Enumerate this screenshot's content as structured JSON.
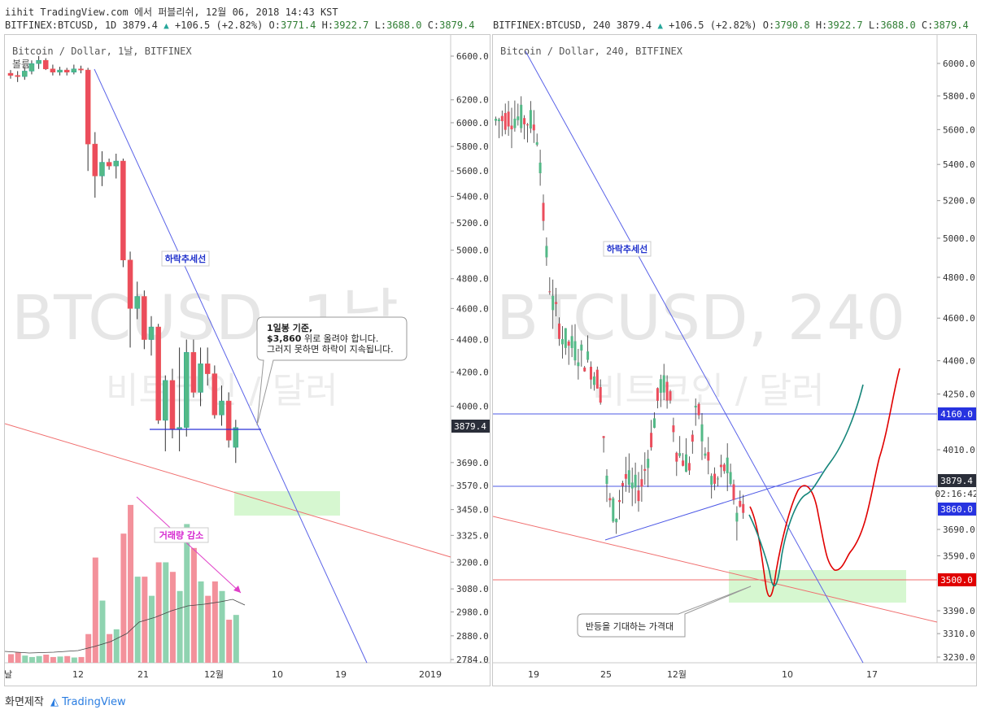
{
  "header": {
    "line1": "iihit TradingView.com 에서 퍼블리쉬, 12월 06, 2018 14:43 KST",
    "left": {
      "prefix": "BITFINEX:BTCUSD, 1D 3879.4",
      "change": "+106.5 (+2.82%)",
      "o": "3771.4",
      "h": "3922.7",
      "l": "3688.0",
      "c": "3879.4"
    },
    "right": {
      "prefix": "BITFINEX:BTCUSD, 240 3879.4",
      "change": "+106.5 (+2.82%)",
      "o": "3790.8",
      "h": "3922.7",
      "l": "3688.0",
      "c": "3879.4"
    }
  },
  "footer": {
    "made_by": "화면제작",
    "brand": "TradingView"
  },
  "colors": {
    "up": "#26a69a",
    "down": "#ef5350",
    "up_fill": "#53b987",
    "down_fill": "#eb4d5c",
    "trend_blue": "#3b4fe4",
    "trend_red": "#f06e6e",
    "zone_green": "#d6f7d0",
    "vol_up": "#8fd3b0",
    "vol_down": "#f3919b",
    "badge": "#2a2e39"
  },
  "chart_data": [
    {
      "type": "candlestick",
      "symbol_label": "Bitcoin / Dollar, 1날, BITFINEX",
      "sublabel": "볼륨",
      "watermark": "BTCUSD, 1날",
      "watermark_sub": "비트코인 / 달러",
      "x_ticks": [
        "날",
        "12",
        "21",
        "12월",
        "10",
        "19",
        "2019"
      ],
      "y_ticks": [
        "6600.0",
        "6200.0",
        "6000.0",
        "5800.0",
        "5600.0",
        "5400.0",
        "5200.0",
        "5000.0",
        "4800.0",
        "4600.0",
        "4400.0",
        "4200.0",
        "4000.0",
        "3690.0",
        "3570.0",
        "3450.0",
        "3325.0",
        "3200.0",
        "3080.0",
        "2980.0",
        "2880.0",
        "2784.0"
      ],
      "ylim": [
        2784,
        6600
      ],
      "scale": "log",
      "last_price": "3879.4",
      "candles": [
        {
          "o": 6440,
          "h": 6470,
          "l": 6390,
          "c": 6420
        },
        {
          "o": 6420,
          "h": 6460,
          "l": 6360,
          "c": 6410
        },
        {
          "o": 6410,
          "h": 6500,
          "l": 6380,
          "c": 6460
        },
        {
          "o": 6460,
          "h": 6560,
          "l": 6430,
          "c": 6530
        },
        {
          "o": 6530,
          "h": 6600,
          "l": 6480,
          "c": 6560
        },
        {
          "o": 6560,
          "h": 6580,
          "l": 6470,
          "c": 6480
        },
        {
          "o": 6480,
          "h": 6520,
          "l": 6420,
          "c": 6450
        },
        {
          "o": 6450,
          "h": 6500,
          "l": 6420,
          "c": 6470
        },
        {
          "o": 6470,
          "h": 6490,
          "l": 6420,
          "c": 6450
        },
        {
          "o": 6450,
          "h": 6520,
          "l": 6430,
          "c": 6480
        },
        {
          "o": 6480,
          "h": 6510,
          "l": 6440,
          "c": 6470
        },
        {
          "o": 6470,
          "h": 6490,
          "l": 5600,
          "c": 5820
        },
        {
          "o": 5820,
          "h": 5920,
          "l": 5390,
          "c": 5560
        },
        {
          "o": 5560,
          "h": 5760,
          "l": 5480,
          "c": 5670
        },
        {
          "o": 5670,
          "h": 5700,
          "l": 5610,
          "c": 5640
        },
        {
          "o": 5640,
          "h": 5740,
          "l": 5540,
          "c": 5680
        },
        {
          "o": 5680,
          "h": 5700,
          "l": 4880,
          "c": 4930
        },
        {
          "o": 4930,
          "h": 4990,
          "l": 4350,
          "c": 4600
        },
        {
          "o": 4600,
          "h": 4780,
          "l": 4530,
          "c": 4680
        },
        {
          "o": 4680,
          "h": 4720,
          "l": 4340,
          "c": 4400
        },
        {
          "o": 4400,
          "h": 4550,
          "l": 4300,
          "c": 4480
        },
        {
          "o": 4480,
          "h": 4500,
          "l": 3900,
          "c": 3920
        },
        {
          "o": 3920,
          "h": 4180,
          "l": 3750,
          "c": 4150
        },
        {
          "o": 4150,
          "h": 4220,
          "l": 3820,
          "c": 3870
        },
        {
          "o": 3870,
          "h": 4350,
          "l": 3750,
          "c": 3880
        },
        {
          "o": 3880,
          "h": 4400,
          "l": 3830,
          "c": 4320
        },
        {
          "o": 4320,
          "h": 4400,
          "l": 4050,
          "c": 4080
        },
        {
          "o": 4080,
          "h": 4350,
          "l": 4000,
          "c": 4250
        },
        {
          "o": 4250,
          "h": 4350,
          "l": 4120,
          "c": 4190
        },
        {
          "o": 4190,
          "h": 4240,
          "l": 3930,
          "c": 3950
        },
        {
          "o": 3950,
          "h": 4120,
          "l": 3890,
          "c": 4030
        },
        {
          "o": 4030,
          "h": 4080,
          "l": 3770,
          "c": 3810
        },
        {
          "o": 3771.4,
          "h": 3922.7,
          "l": 3688,
          "c": 3879.4
        }
      ],
      "volume": [
        18,
        22,
        15,
        12,
        14,
        17,
        12,
        13,
        14,
        11,
        12,
        60,
        220,
        130,
        60,
        70,
        270,
        330,
        180,
        180,
        140,
        210,
        210,
        190,
        150,
        290,
        240,
        170,
        140,
        170,
        150,
        90,
        100
      ],
      "annotations": {
        "downtrend_label": "하락추세선",
        "callout_line1": "1일봉 기준,",
        "callout_line2_strong": "$3,860",
        "callout_line2_rest": " 위로 올려야 합니다.",
        "callout_line3": "그러지 못하면 하락이 지속됩니다.",
        "volume_label": "거래량 감소"
      }
    },
    {
      "type": "candlestick",
      "symbol_label": "Bitcoin / Dollar, 240, BITFINEX",
      "watermark": "BTCUSD, 240",
      "watermark_sub": "비트코인 / 달러",
      "x_ticks": [
        "19",
        "25",
        "12월",
        "10",
        "17"
      ],
      "y_ticks": [
        "6000.0",
        "5800.0",
        "5600.0",
        "5400.0",
        "5200.0",
        "5000.0",
        "4800.0",
        "4600.0",
        "4400.0",
        "4250.0",
        "4010.0",
        "3690.0",
        "3590.0",
        "3390.0",
        "3310.0",
        "3230.0"
      ],
      "ylim": [
        3230,
        6000
      ],
      "scale": "log",
      "price_labels": {
        "resistance": "4160.0",
        "last": "3879.4",
        "countdown": "02:16:42",
        "support_level": "3860.0",
        "target": "3500.0"
      },
      "annotations": {
        "downtrend_label": "하락추세선",
        "callout": "반등을 기대하는 가격대"
      }
    }
  ]
}
